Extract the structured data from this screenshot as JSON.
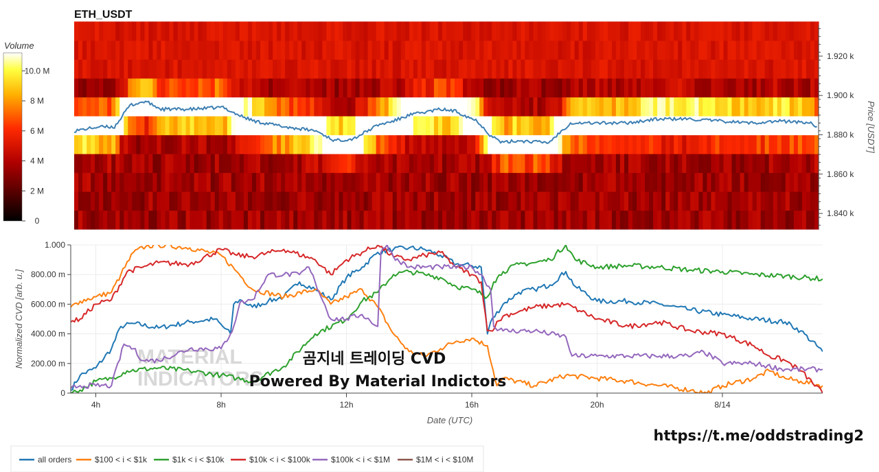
{
  "heatmap": {
    "title": "ETH_USDT",
    "y_axis_label": "Price [USDT]",
    "y_ticks": [
      "1.840 k",
      "1.860 k",
      "1.880 k",
      "1.900 k",
      "1.920 k"
    ],
    "y_tick_values": [
      1840,
      1860,
      1880,
      1900,
      1920
    ],
    "ylim": [
      1832,
      1936
    ],
    "colorbar": {
      "label": "Volume",
      "ticks": [
        "0",
        "2 M",
        "4 M",
        "6 M",
        "8 M",
        "10.0 M"
      ],
      "tick_values": [
        0,
        2,
        4,
        6,
        8,
        10
      ],
      "max": 11.2
    },
    "price_line_color": "#3d7fb2"
  },
  "chart_data": {
    "type": "line",
    "title": "",
    "xlabel": "Date (UTC)",
    "ylabel": "Normalized CVD [arb. u.]",
    "x_ticks": [
      "4h",
      "8h",
      "12h",
      "16h",
      "20h",
      "8/14"
    ],
    "x_tick_hours": [
      4,
      8,
      12,
      16,
      20,
      24
    ],
    "xlim_hours": [
      3.2,
      27.2
    ],
    "y_ticks": [
      "0",
      "200.00 m",
      "400.00 m",
      "600.00 m",
      "800.00 m",
      "1.000"
    ],
    "ylim": [
      0,
      1
    ],
    "series": [
      {
        "name": "all orders",
        "color": "#1f77b4",
        "x": [
          3.2,
          3.5,
          4.0,
          4.5,
          4.8,
          5.2,
          6.0,
          7.0,
          7.8,
          8.3,
          8.4,
          8.6,
          9.0,
          9.5,
          10.0,
          10.5,
          11.0,
          11.5,
          12.0,
          12.5,
          13.0,
          13.5,
          14.0,
          14.5,
          15.0,
          15.5,
          16.0,
          16.3,
          16.5,
          16.6,
          17.0,
          17.5,
          18.0,
          18.5,
          19.0,
          19.3,
          20.0,
          21.0,
          22.0,
          23.0,
          24.0,
          25.0,
          26.0,
          26.5,
          27.2
        ],
        "y": [
          0.02,
          0.12,
          0.17,
          0.3,
          0.45,
          0.47,
          0.44,
          0.48,
          0.5,
          0.4,
          0.6,
          0.63,
          0.58,
          0.62,
          0.65,
          0.75,
          0.7,
          0.63,
          0.78,
          0.85,
          0.95,
          0.97,
          0.98,
          0.97,
          0.93,
          0.87,
          0.86,
          0.85,
          0.4,
          0.48,
          0.6,
          0.68,
          0.7,
          0.73,
          0.82,
          0.72,
          0.62,
          0.62,
          0.6,
          0.56,
          0.53,
          0.5,
          0.48,
          0.42,
          0.28
        ]
      },
      {
        "name": "$100 < i < $1k",
        "color": "#ff7f0e",
        "x": [
          3.2,
          3.5,
          4.0,
          4.5,
          4.8,
          5.2,
          5.6,
          6.0,
          7.0,
          8.0,
          8.5,
          9.0,
          10.0,
          11.0,
          11.5,
          12.0,
          12.5,
          13.0,
          13.5,
          14.0,
          14.5,
          15.0,
          15.5,
          16.0,
          16.5,
          16.8,
          17.0,
          18.0,
          19.0,
          20.0,
          21.0,
          22.0,
          23.0,
          23.5,
          24.0,
          25.0,
          25.5,
          26.0,
          26.5,
          27.2
        ],
        "y": [
          0.58,
          0.62,
          0.65,
          0.68,
          0.8,
          0.95,
          0.99,
          1.0,
          0.98,
          0.93,
          0.82,
          0.7,
          0.65,
          0.7,
          0.6,
          0.65,
          0.7,
          0.58,
          0.4,
          0.28,
          0.25,
          0.3,
          0.35,
          0.37,
          0.32,
          0.05,
          0.1,
          0.05,
          0.12,
          0.1,
          0.08,
          0.05,
          0.02,
          0.0,
          0.05,
          0.1,
          0.15,
          0.1,
          0.08,
          0.05
        ]
      },
      {
        "name": "$1k < i < $10k",
        "color": "#2ca02c",
        "x": [
          3.2,
          3.5,
          4.0,
          4.5,
          5.0,
          6.0,
          7.0,
          8.0,
          8.5,
          9.0,
          10.0,
          11.0,
          12.0,
          12.5,
          13.0,
          13.5,
          14.0,
          14.5,
          15.0,
          15.5,
          16.0,
          16.5,
          16.7,
          17.0,
          17.5,
          18.0,
          18.5,
          19.0,
          19.3,
          20.0,
          21.0,
          22.0,
          23.0,
          24.0,
          25.0,
          26.0,
          27.2
        ],
        "y": [
          0.0,
          0.02,
          0.08,
          0.1,
          0.15,
          0.17,
          0.15,
          0.12,
          0.1,
          0.08,
          0.18,
          0.4,
          0.5,
          0.62,
          0.68,
          0.8,
          0.82,
          0.8,
          0.78,
          0.72,
          0.7,
          0.65,
          0.75,
          0.82,
          0.87,
          0.88,
          0.9,
          1.0,
          0.9,
          0.85,
          0.86,
          0.85,
          0.83,
          0.82,
          0.8,
          0.79,
          0.77
        ]
      },
      {
        "name": "$10k < i < $100k",
        "color": "#d62728",
        "x": [
          3.2,
          3.5,
          4.0,
          4.5,
          5.0,
          5.5,
          6.0,
          7.0,
          8.0,
          8.5,
          9.0,
          10.0,
          11.0,
          11.5,
          12.0,
          12.5,
          13.0,
          13.5,
          14.0,
          14.5,
          15.0,
          15.5,
          16.0,
          16.3,
          16.5,
          16.6,
          17.0,
          17.5,
          18.0,
          19.0,
          19.5,
          20.0,
          21.0,
          22.0,
          23.0,
          24.0,
          25.0,
          25.5,
          26.0,
          26.5,
          27.2
        ],
        "y": [
          0.48,
          0.5,
          0.6,
          0.63,
          0.82,
          0.85,
          0.88,
          0.87,
          0.97,
          0.93,
          0.92,
          0.97,
          0.9,
          0.8,
          0.9,
          0.95,
          1.0,
          0.92,
          0.9,
          0.93,
          0.95,
          0.85,
          0.8,
          0.75,
          0.42,
          0.42,
          0.52,
          0.55,
          0.58,
          0.6,
          0.55,
          0.5,
          0.45,
          0.48,
          0.42,
          0.4,
          0.32,
          0.25,
          0.22,
          0.15,
          0.0
        ]
      },
      {
        "name": "$100k < i < $1M",
        "color": "#9467bd",
        "x": [
          3.2,
          3.5,
          4.0,
          4.5,
          4.9,
          5.2,
          5.5,
          6.0,
          7.0,
          8.0,
          8.3,
          8.4,
          8.6,
          9.0,
          9.5,
          10.0,
          10.5,
          10.8,
          11.0,
          11.5,
          12.0,
          12.5,
          13.0,
          13.1,
          13.3,
          13.5,
          14.0,
          15.0,
          16.0,
          16.3,
          16.6,
          16.7,
          17.0,
          18.0,
          19.0,
          19.2,
          20.0,
          21.0,
          22.0,
          23.0,
          23.4,
          24.0,
          25.0,
          26.0,
          27.2
        ],
        "y": [
          0.03,
          0.05,
          0.05,
          0.05,
          0.33,
          0.3,
          0.22,
          0.22,
          0.3,
          0.3,
          0.4,
          0.45,
          0.61,
          0.63,
          0.8,
          0.8,
          0.8,
          0.85,
          0.75,
          0.5,
          0.5,
          0.53,
          0.45,
          0.95,
          1.0,
          0.92,
          0.85,
          0.85,
          0.85,
          0.8,
          0.7,
          0.45,
          0.42,
          0.42,
          0.38,
          0.25,
          0.25,
          0.25,
          0.25,
          0.25,
          0.28,
          0.2,
          0.2,
          0.16,
          0.16
        ]
      },
      {
        "name": "$1M < i < $10M",
        "color": "#8c564b",
        "x": [],
        "y": []
      }
    ]
  },
  "watermark": {
    "line1": "곰지네 트레이딩 CVD",
    "line2": "Powered By Material Indictors",
    "ghost_line1": "MATERIAL",
    "ghost_line2": "INDICATORS"
  },
  "footer_url": "https://t.me/oddstrading2"
}
